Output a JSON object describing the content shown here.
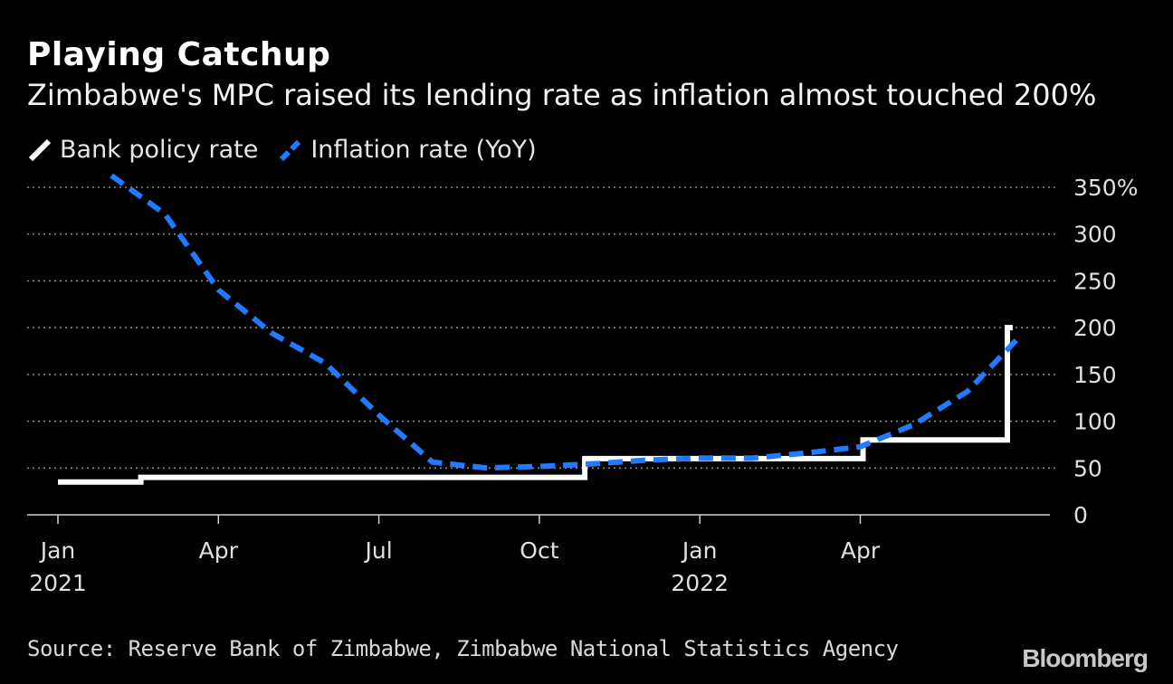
{
  "chart_data": {
    "type": "line",
    "title": "Playing Catchup",
    "subtitle": "Zimbabwe's MPC raised its lending rate as inflation almost touched 200%",
    "ylim": [
      0,
      350
    ],
    "y_ticks": [
      0,
      50,
      100,
      150,
      200,
      250,
      300,
      350
    ],
    "y_tick_labels": [
      "0",
      "50",
      "100",
      "150",
      "200",
      "250",
      "300",
      "350%"
    ],
    "x_range": [
      0,
      18.2
    ],
    "x_ticks": [
      {
        "x": 0,
        "label": "Jan",
        "year": "2021"
      },
      {
        "x": 3,
        "label": "Apr",
        "year": ""
      },
      {
        "x": 6,
        "label": "Jul",
        "year": ""
      },
      {
        "x": 9,
        "label": "Oct",
        "year": ""
      },
      {
        "x": 12,
        "label": "Jan",
        "year": "2022"
      },
      {
        "x": 15,
        "label": "Apr",
        "year": ""
      }
    ],
    "series": [
      {
        "name": "Bank policy rate",
        "color": "#ffffff",
        "style": "step",
        "points": [
          [
            0,
            35
          ],
          [
            1.55,
            35
          ],
          [
            1.55,
            40
          ],
          [
            9.85,
            40
          ],
          [
            9.85,
            60
          ],
          [
            15.05,
            60
          ],
          [
            15.05,
            80
          ],
          [
            17.75,
            80
          ],
          [
            17.75,
            200
          ],
          [
            17.85,
            200
          ]
        ]
      },
      {
        "name": "Inflation rate (YoY)",
        "color": "#1f7bff",
        "style": "dashed",
        "points": [
          [
            1,
            362.6
          ],
          [
            2,
            321.5
          ],
          [
            3,
            240.5
          ],
          [
            4,
            194.1
          ],
          [
            5,
            161.9
          ],
          [
            6,
            106.6
          ],
          [
            7,
            56.4
          ],
          [
            8,
            50.2
          ],
          [
            9,
            51.6
          ],
          [
            10,
            54.5
          ],
          [
            11,
            58.4
          ],
          [
            12,
            60.6
          ],
          [
            13,
            60.7
          ],
          [
            14,
            66.1
          ],
          [
            15,
            72.7
          ],
          [
            16,
            96.4
          ],
          [
            17,
            131.7
          ],
          [
            18,
            191.6
          ]
        ]
      }
    ]
  },
  "source": "Source: Reserve Bank of Zimbabwe, Zimbabwe National Statistics Agency",
  "brand": "Bloomberg"
}
